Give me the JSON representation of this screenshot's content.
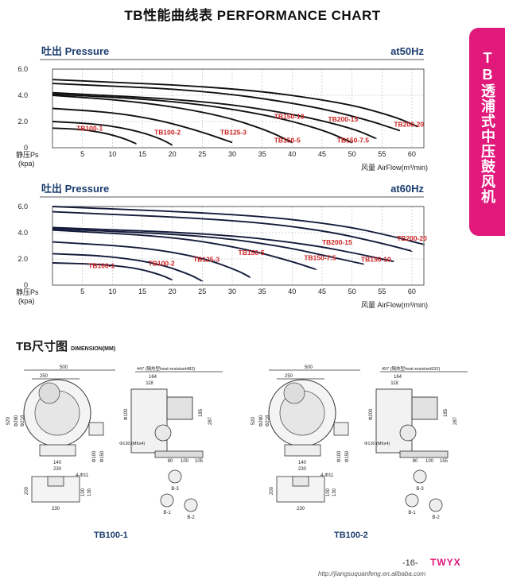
{
  "page_title": "TB性能曲线表 PERFORMANCE CHART",
  "side_tab": "TB透浦式中压鼓风机",
  "colors": {
    "accent": "#e0197b",
    "curve_label": "#cc2222",
    "curve": "#111111"
  },
  "chart_data": [
    {
      "type": "line",
      "title": "吐出 Pressure",
      "frequency_label": "at50Hz",
      "ylabel": "静压Ps",
      "yunit": "(kpa)",
      "xlabel": "风量 AirFlow(m³/min)",
      "xlim": [
        0,
        62
      ],
      "ylim": [
        0,
        6
      ],
      "x_ticks": [
        "5",
        "10",
        "15",
        "20",
        "25",
        "30",
        "35",
        "40",
        "45",
        "50",
        "55",
        "60"
      ],
      "y_ticks": [
        "0",
        "2.0",
        "4.0",
        "6.0"
      ],
      "series": [
        {
          "name": "TB100-1",
          "points": [
            [
              0,
              1.5
            ],
            [
              5,
              1.4
            ],
            [
              9,
              1.1
            ],
            [
              12,
              0.7
            ],
            [
              14,
              0.3
            ]
          ]
        },
        {
          "name": "TB100-2",
          "points": [
            [
              0,
              2.0
            ],
            [
              8,
              1.8
            ],
            [
              14,
              1.3
            ],
            [
              18,
              0.7
            ],
            [
              20,
              0.2
            ]
          ]
        },
        {
          "name": "TB125-3",
          "points": [
            [
              0,
              3.0
            ],
            [
              10,
              2.7
            ],
            [
              18,
              2.1
            ],
            [
              25,
              1.2
            ],
            [
              30,
              0.4
            ]
          ]
        },
        {
          "name": "TB150-5",
          "points": [
            [
              0,
              4.0
            ],
            [
              15,
              3.5
            ],
            [
              28,
              2.5
            ],
            [
              36,
              1.3
            ],
            [
              40,
              0.4
            ]
          ]
        },
        {
          "name": "TB150-7.5",
          "points": [
            [
              0,
              4.1
            ],
            [
              20,
              3.6
            ],
            [
              35,
              2.6
            ],
            [
              45,
              1.4
            ],
            [
              50,
              0.4
            ]
          ]
        },
        {
          "name": "TB150-10",
          "points": [
            [
              0,
              4.2
            ],
            [
              25,
              3.6
            ],
            [
              40,
              2.6
            ],
            [
              50,
              1.5
            ],
            [
              54,
              0.7
            ]
          ]
        },
        {
          "name": "TB200-15",
          "points": [
            [
              0,
              4.9
            ],
            [
              25,
              4.4
            ],
            [
              42,
              3.3
            ],
            [
              52,
              2.2
            ],
            [
              58,
              1.3
            ]
          ]
        },
        {
          "name": "TB200-20",
          "points": [
            [
              0,
              5.2
            ],
            [
              30,
              4.6
            ],
            [
              48,
              3.5
            ],
            [
              57,
              2.4
            ],
            [
              61,
              1.6
            ]
          ]
        }
      ],
      "labels": [
        {
          "text": "TB100-1",
          "x": 4,
          "y": 1.3
        },
        {
          "text": "TB100-2",
          "x": 17,
          "y": 1.0
        },
        {
          "text": "TB125-3",
          "x": 28,
          "y": 1.0
        },
        {
          "text": "TB150-10",
          "x": 37,
          "y": 2.2
        },
        {
          "text": "TB200-15",
          "x": 46,
          "y": 2.0
        },
        {
          "text": "TB150-5",
          "x": 37,
          "y": 0.4
        },
        {
          "text": "TB150-7.5",
          "x": 47.5,
          "y": 0.4
        },
        {
          "text": "TB200-20",
          "x": 57,
          "y": 1.6
        }
      ]
    },
    {
      "type": "line",
      "title": "吐出 Pressure",
      "frequency_label": "at60Hz",
      "ylabel": "静压Ps",
      "yunit": "(kpa)",
      "xlabel": "风量 AirFlow(m³/min)",
      "xlim": [
        0,
        62
      ],
      "ylim": [
        0,
        6
      ],
      "x_ticks": [
        "5",
        "10",
        "15",
        "20",
        "25",
        "30",
        "35",
        "40",
        "45",
        "50",
        "55",
        "60"
      ],
      "y_ticks": [
        "0",
        "2.0",
        "4.0",
        "6.0"
      ],
      "series": [
        {
          "name": "TB100-1",
          "points": [
            [
              0,
              1.7
            ],
            [
              8,
              1.6
            ],
            [
              14,
              1.3
            ],
            [
              18,
              0.8
            ],
            [
              20,
              0.4
            ]
          ]
        },
        {
          "name": "TB100-2",
          "points": [
            [
              0,
              2.4
            ],
            [
              10,
              2.2
            ],
            [
              18,
              1.6
            ],
            [
              23,
              0.8
            ],
            [
              25,
              0.3
            ]
          ]
        },
        {
          "name": "TB125-3",
          "points": [
            [
              0,
              3.3
            ],
            [
              15,
              2.9
            ],
            [
              25,
              2.1
            ],
            [
              31,
              1.1
            ],
            [
              33,
              0.6
            ]
          ]
        },
        {
          "name": "TB150-5",
          "points": [
            [
              0,
              4.2
            ],
            [
              20,
              3.7
            ],
            [
              32,
              2.8
            ],
            [
              40,
              1.8
            ],
            [
              44,
              1.2
            ]
          ]
        },
        {
          "name": "TB150-7.5",
          "points": [
            [
              0,
              4.3
            ],
            [
              25,
              3.8
            ],
            [
              38,
              3.0
            ],
            [
              47,
              2.1
            ],
            [
              52,
              1.6
            ]
          ]
        },
        {
          "name": "TB150-10",
          "points": [
            [
              0,
              4.4
            ],
            [
              28,
              3.9
            ],
            [
              43,
              3.1
            ],
            [
              52,
              2.3
            ],
            [
              57,
              1.8
            ]
          ]
        },
        {
          "name": "TB200-15",
          "points": [
            [
              0,
              5.6
            ],
            [
              30,
              5.0
            ],
            [
              45,
              4.2
            ],
            [
              55,
              3.2
            ],
            [
              60,
              2.6
            ]
          ]
        },
        {
          "name": "TB200-20",
          "points": [
            [
              0,
              6.0
            ],
            [
              32,
              5.4
            ],
            [
              48,
              4.6
            ],
            [
              57,
              3.7
            ],
            [
              62,
              3.1
            ]
          ]
        }
      ],
      "labels": [
        {
          "text": "TB100-1",
          "x": 6,
          "y": 1.3
        },
        {
          "text": "TB100-2",
          "x": 16,
          "y": 1.5
        },
        {
          "text": "TB125-3",
          "x": 23.5,
          "y": 1.8
        },
        {
          "text": "TB150-5",
          "x": 31,
          "y": 2.3
        },
        {
          "text": "TB200-15",
          "x": 45,
          "y": 3.1
        },
        {
          "text": "TB150-7.5",
          "x": 42,
          "y": 1.9
        },
        {
          "text": "TB150-10",
          "x": 51.5,
          "y": 1.8
        },
        {
          "text": "TB200-20",
          "x": 57.5,
          "y": 3.4
        }
      ]
    }
  ],
  "dimension": {
    "title_cn": "TB尺寸图",
    "title_en": "DIMENSION(MM)",
    "models": [
      {
        "name": "TB100-1",
        "width": "500",
        "casing_w": "250",
        "inlet_d": "Φ218",
        "outlet_d": "Φ280",
        "height": "520",
        "side_total": "447 (隔热型heat-resistant482)",
        "side_a": "164",
        "side_b": "118",
        "flange": "Φ100",
        "base": "Φ130 (M6x4)",
        "base_dims": [
          "80",
          "100",
          "105"
        ],
        "foot": [
          "140",
          "230"
        ],
        "outlet": [
          "Φ100",
          "Φ150"
        ],
        "side_h": "287",
        "side_c": "185",
        "plate": [
          "200",
          "100",
          "130",
          "230"
        ],
        "holes": "4-Φ11",
        "views": [
          "B-1",
          "B-2",
          "B-3"
        ]
      },
      {
        "name": "TB100-2",
        "width": "500",
        "casing_w": "250",
        "inlet_d": "Φ218",
        "outlet_d": "Φ280",
        "height": "520",
        "side_total": "497 (隔热型heat-resistant532)",
        "side_a": "164",
        "side_b": "118",
        "flange": "Φ200",
        "base": "Φ130 (M6x4)",
        "base_dims": [
          "80",
          "100",
          "155"
        ],
        "foot": [
          "140",
          "230"
        ],
        "outlet": [
          "Φ100",
          "Φ150"
        ],
        "side_h": "287",
        "side_c": "185",
        "plate": [
          "200",
          "100",
          "130",
          "230"
        ],
        "holes": "4-Φ11",
        "views": [
          "B-1",
          "B-2",
          "B-3"
        ]
      }
    ]
  },
  "footer": {
    "page": "-16-",
    "brand": "TWYX",
    "url": "http://jiangsuquanfeng.en.alibaba.com"
  }
}
